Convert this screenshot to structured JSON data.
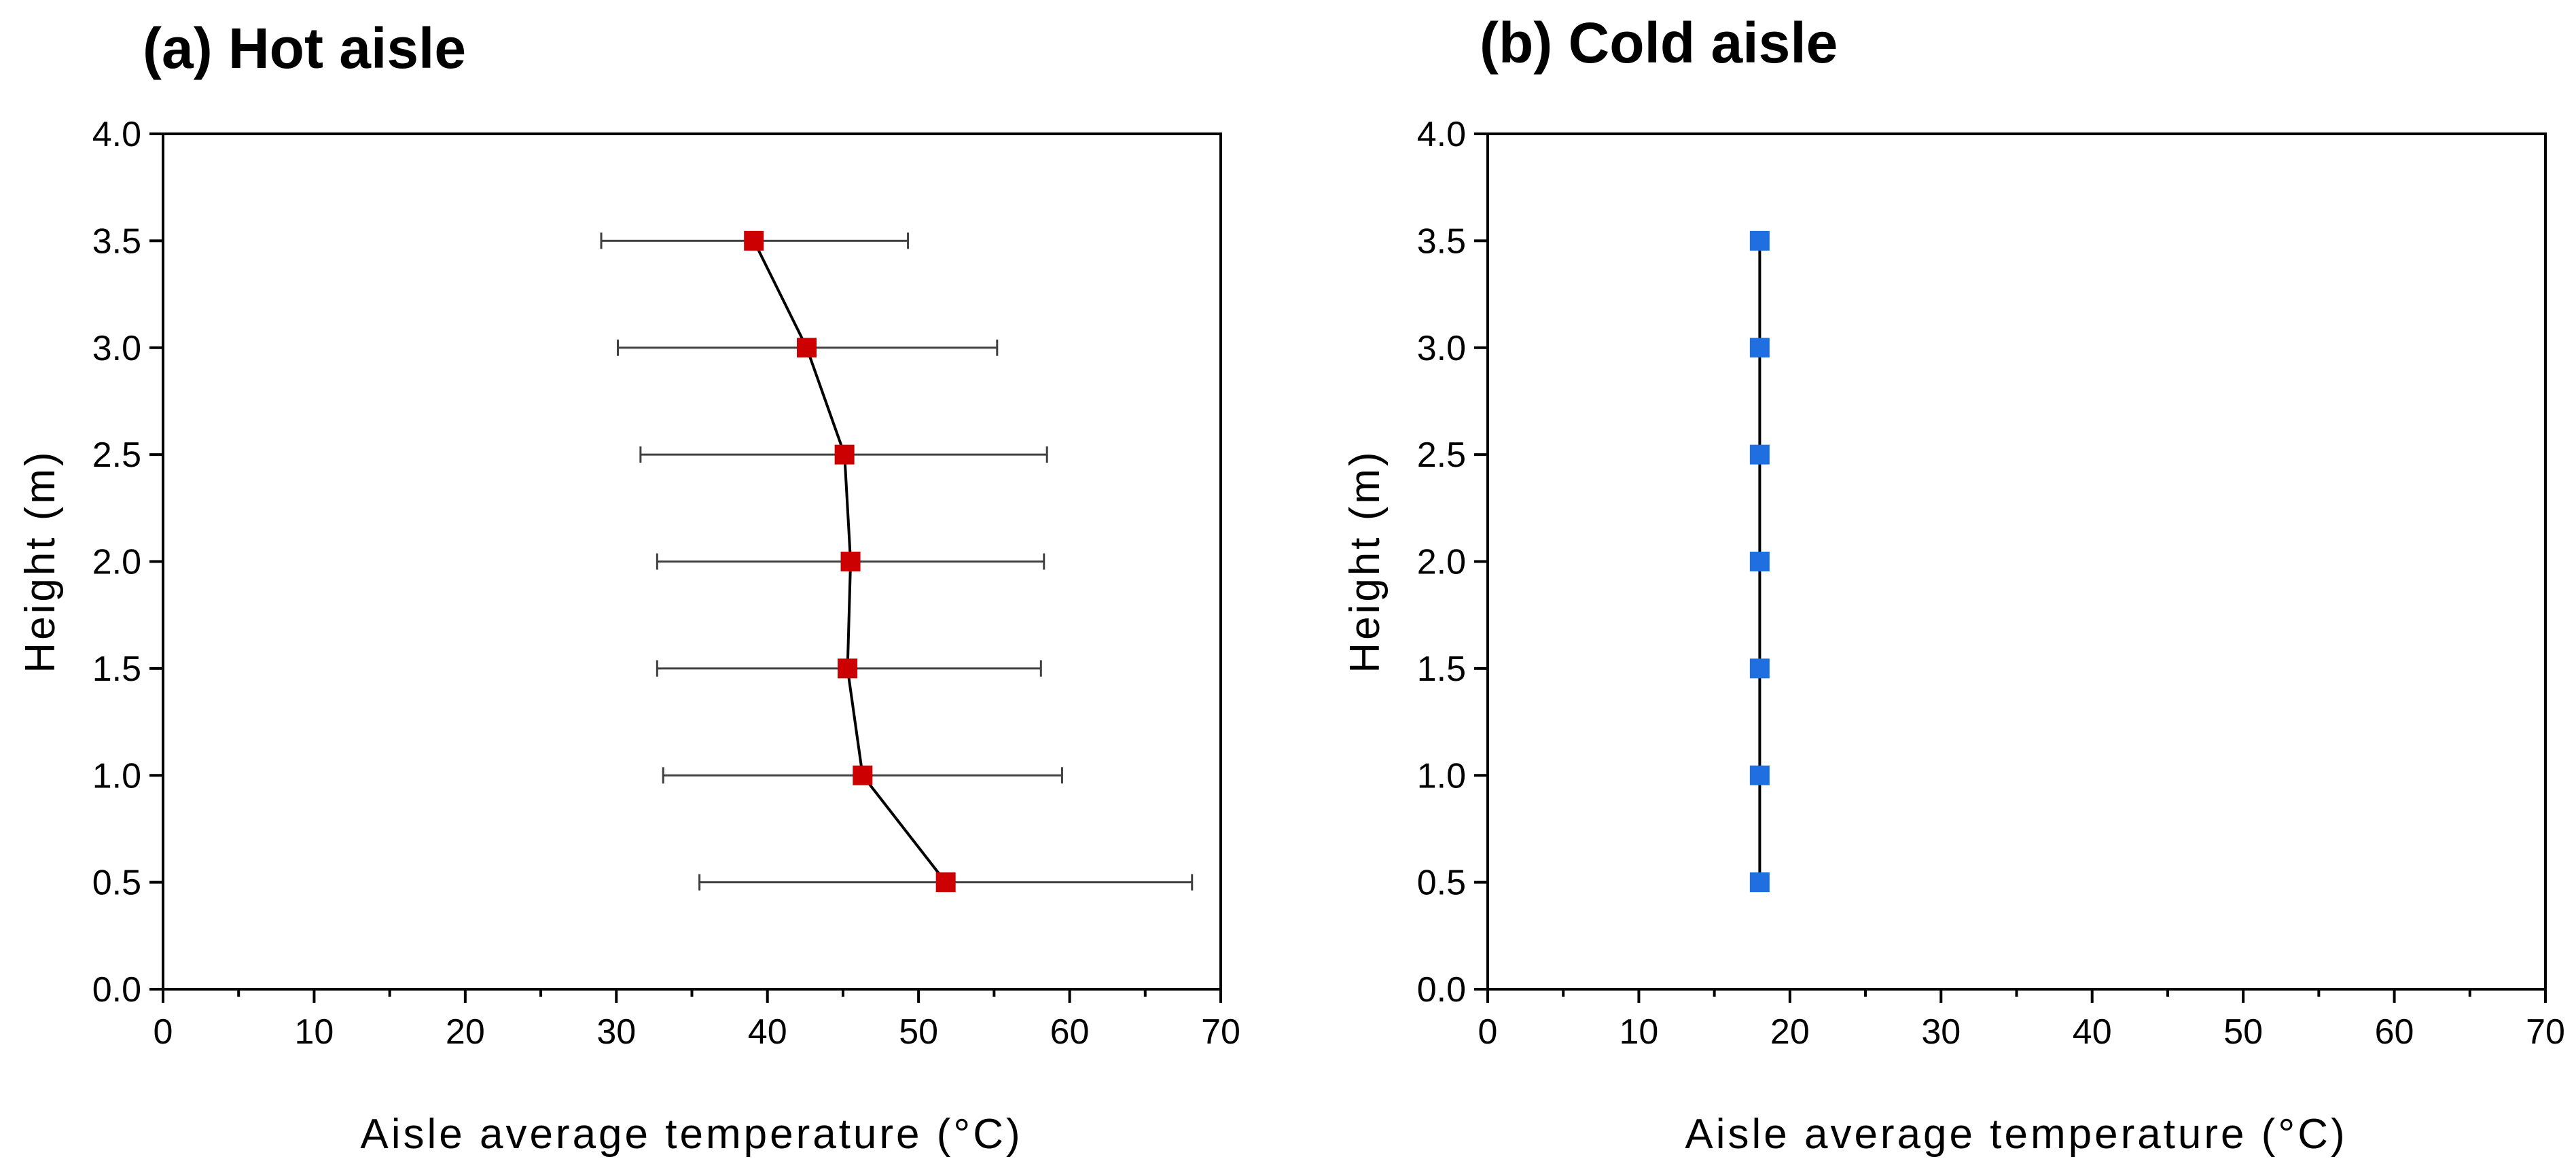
{
  "chart_data": [
    {
      "type": "scatter",
      "panel_label": "(a) Hot aisle",
      "xlabel": "Aisle average temperature (°C)",
      "ylabel": "Height (m)",
      "xlim": [
        0,
        70
      ],
      "ylim": [
        0,
        4
      ],
      "xticks": [
        "0",
        "10",
        "20",
        "30",
        "40",
        "50",
        "60",
        "70"
      ],
      "yticks": [
        "0.0",
        "0.5",
        "1.0",
        "1.5",
        "2.0",
        "2.5",
        "3.0",
        "3.5",
        "4.0"
      ],
      "series": [
        {
          "name": "Hot aisle",
          "color": "#cc0000",
          "points": [
            {
              "y": 0.5,
              "x": 51.8,
              "xerr_low": 35.5,
              "xerr_high": 68.1
            },
            {
              "y": 1.0,
              "x": 46.3,
              "xerr_low": 33.1,
              "xerr_high": 59.5
            },
            {
              "y": 1.5,
              "x": 45.3,
              "xerr_low": 32.7,
              "xerr_high": 58.1
            },
            {
              "y": 2.0,
              "x": 45.5,
              "xerr_low": 32.7,
              "xerr_high": 58.3
            },
            {
              "y": 2.5,
              "x": 45.1,
              "xerr_low": 31.6,
              "xerr_high": 58.5
            },
            {
              "y": 3.0,
              "x": 42.6,
              "xerr_low": 30.1,
              "xerr_high": 55.2
            },
            {
              "y": 3.5,
              "x": 39.1,
              "xerr_low": 29.0,
              "xerr_high": 49.3
            }
          ]
        }
      ]
    },
    {
      "type": "scatter",
      "panel_label": "(b) Cold aisle",
      "xlabel": "Aisle average temperature (°C)",
      "ylabel": "Height (m)",
      "xlim": [
        0,
        70
      ],
      "ylim": [
        0,
        4
      ],
      "xticks": [
        "0",
        "10",
        "20",
        "30",
        "40",
        "50",
        "60",
        "70"
      ],
      "yticks": [
        "0.0",
        "0.5",
        "1.0",
        "1.5",
        "2.0",
        "2.5",
        "3.0",
        "3.5",
        "4.0"
      ],
      "series": [
        {
          "name": "Cold aisle",
          "color": "#1f6fe0",
          "points": [
            {
              "y": 0.5,
              "x": 18.0
            },
            {
              "y": 1.0,
              "x": 18.0
            },
            {
              "y": 1.5,
              "x": 18.0
            },
            {
              "y": 2.0,
              "x": 18.0
            },
            {
              "y": 2.5,
              "x": 18.0
            },
            {
              "y": 3.0,
              "x": 18.0
            },
            {
              "y": 3.5,
              "x": 18.0
            }
          ]
        }
      ]
    }
  ]
}
